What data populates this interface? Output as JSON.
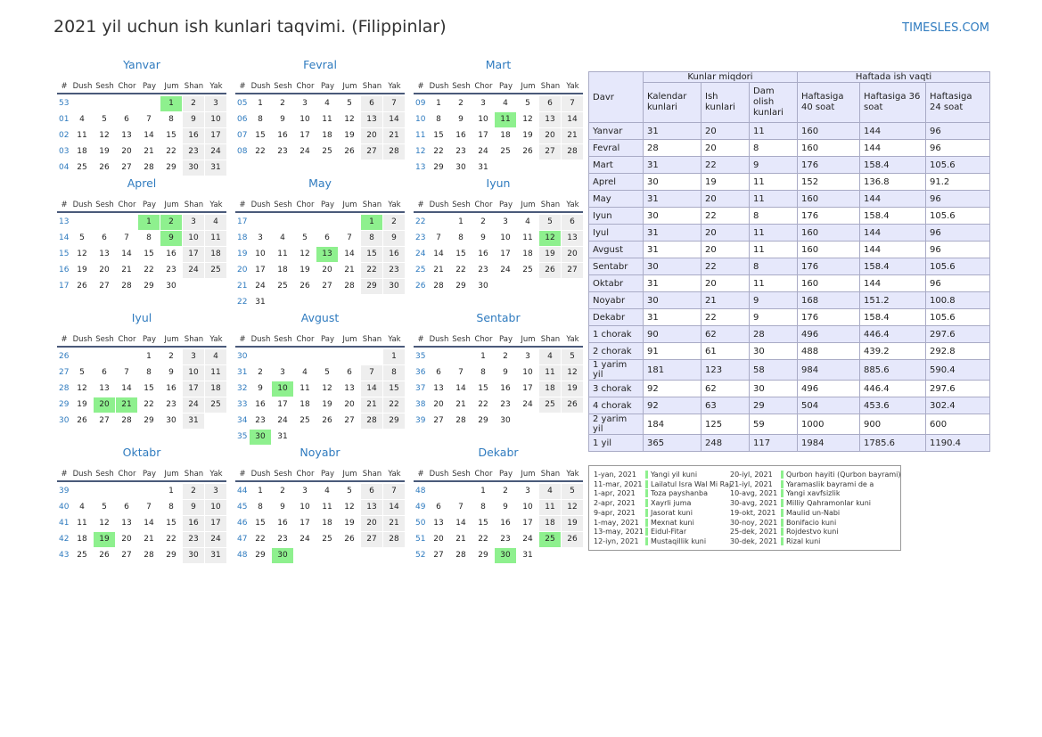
{
  "header": {
    "title": "2021 yil uchun ish kunlari taqvimi. (Filippinlar)",
    "site": "TIMESLES.COM"
  },
  "calendar": {
    "weekdays": [
      "#",
      "Dush",
      "Sesh",
      "Chor",
      "Pay",
      "Jum",
      "Shan",
      "Yak"
    ],
    "months": [
      {
        "name": "Yanvar",
        "holidays": [
          1
        ],
        "weeks": [
          [
            "53",
            null,
            null,
            null,
            null,
            1,
            2,
            3
          ],
          [
            "01",
            4,
            5,
            6,
            7,
            8,
            9,
            10
          ],
          [
            "02",
            11,
            12,
            13,
            14,
            15,
            16,
            17
          ],
          [
            "03",
            18,
            19,
            20,
            21,
            22,
            23,
            24
          ],
          [
            "04",
            25,
            26,
            27,
            28,
            29,
            30,
            31
          ]
        ]
      },
      {
        "name": "Fevral",
        "holidays": [],
        "weeks": [
          [
            "05",
            1,
            2,
            3,
            4,
            5,
            6,
            7
          ],
          [
            "06",
            8,
            9,
            10,
            11,
            12,
            13,
            14
          ],
          [
            "07",
            15,
            16,
            17,
            18,
            19,
            20,
            21
          ],
          [
            "08",
            22,
            23,
            24,
            25,
            26,
            27,
            28
          ]
        ]
      },
      {
        "name": "Mart",
        "holidays": [
          11
        ],
        "weeks": [
          [
            "09",
            1,
            2,
            3,
            4,
            5,
            6,
            7
          ],
          [
            "10",
            8,
            9,
            10,
            11,
            12,
            13,
            14
          ],
          [
            "11",
            15,
            16,
            17,
            18,
            19,
            20,
            21
          ],
          [
            "12",
            22,
            23,
            24,
            25,
            26,
            27,
            28
          ],
          [
            "13",
            29,
            30,
            31,
            null,
            null,
            null,
            null
          ]
        ]
      },
      {
        "name": "Aprel",
        "holidays": [
          1,
          2,
          9
        ],
        "weeks": [
          [
            "13",
            null,
            null,
            null,
            1,
            2,
            3,
            4
          ],
          [
            "14",
            5,
            6,
            7,
            8,
            9,
            10,
            11
          ],
          [
            "15",
            12,
            13,
            14,
            15,
            16,
            17,
            18
          ],
          [
            "16",
            19,
            20,
            21,
            22,
            23,
            24,
            25
          ],
          [
            "17",
            26,
            27,
            28,
            29,
            30,
            null,
            null
          ]
        ]
      },
      {
        "name": "May",
        "holidays": [
          1,
          13
        ],
        "weeks": [
          [
            "17",
            null,
            null,
            null,
            null,
            null,
            1,
            2
          ],
          [
            "18",
            3,
            4,
            5,
            6,
            7,
            8,
            9
          ],
          [
            "19",
            10,
            11,
            12,
            13,
            14,
            15,
            16
          ],
          [
            "20",
            17,
            18,
            19,
            20,
            21,
            22,
            23
          ],
          [
            "21",
            24,
            25,
            26,
            27,
            28,
            29,
            30
          ],
          [
            "22",
            31,
            null,
            null,
            null,
            null,
            null,
            null
          ]
        ]
      },
      {
        "name": "Iyun",
        "holidays": [
          12
        ],
        "weeks": [
          [
            "22",
            null,
            1,
            2,
            3,
            4,
            5,
            6
          ],
          [
            "23",
            7,
            8,
            9,
            10,
            11,
            12,
            13
          ],
          [
            "24",
            14,
            15,
            16,
            17,
            18,
            19,
            20
          ],
          [
            "25",
            21,
            22,
            23,
            24,
            25,
            26,
            27
          ],
          [
            "26",
            28,
            29,
            30,
            null,
            null,
            null,
            null
          ]
        ]
      },
      {
        "name": "Iyul",
        "holidays": [
          20,
          21
        ],
        "weeks": [
          [
            "26",
            null,
            null,
            null,
            1,
            2,
            3,
            4
          ],
          [
            "27",
            5,
            6,
            7,
            8,
            9,
            10,
            11
          ],
          [
            "28",
            12,
            13,
            14,
            15,
            16,
            17,
            18
          ],
          [
            "29",
            19,
            20,
            21,
            22,
            23,
            24,
            25
          ],
          [
            "30",
            26,
            27,
            28,
            29,
            30,
            31,
            null
          ]
        ]
      },
      {
        "name": "Avgust",
        "holidays": [
          10,
          30
        ],
        "weeks": [
          [
            "30",
            null,
            null,
            null,
            null,
            null,
            null,
            1
          ],
          [
            "31",
            2,
            3,
            4,
            5,
            6,
            7,
            8
          ],
          [
            "32",
            9,
            10,
            11,
            12,
            13,
            14,
            15
          ],
          [
            "33",
            16,
            17,
            18,
            19,
            20,
            21,
            22
          ],
          [
            "34",
            23,
            24,
            25,
            26,
            27,
            28,
            29
          ],
          [
            "35",
            30,
            31,
            null,
            null,
            null,
            null,
            null
          ]
        ]
      },
      {
        "name": "Sentabr",
        "holidays": [],
        "weeks": [
          [
            "35",
            null,
            null,
            1,
            2,
            3,
            4,
            5
          ],
          [
            "36",
            6,
            7,
            8,
            9,
            10,
            11,
            12
          ],
          [
            "37",
            13,
            14,
            15,
            16,
            17,
            18,
            19
          ],
          [
            "38",
            20,
            21,
            22,
            23,
            24,
            25,
            26
          ],
          [
            "39",
            27,
            28,
            29,
            30,
            null,
            null,
            null
          ]
        ]
      },
      {
        "name": "Oktabr",
        "holidays": [
          19
        ],
        "weeks": [
          [
            "39",
            null,
            null,
            null,
            null,
            1,
            2,
            3
          ],
          [
            "40",
            4,
            5,
            6,
            7,
            8,
            9,
            10
          ],
          [
            "41",
            11,
            12,
            13,
            14,
            15,
            16,
            17
          ],
          [
            "42",
            18,
            19,
            20,
            21,
            22,
            23,
            24
          ],
          [
            "43",
            25,
            26,
            27,
            28,
            29,
            30,
            31
          ]
        ]
      },
      {
        "name": "Noyabr",
        "holidays": [
          30
        ],
        "weeks": [
          [
            "44",
            1,
            2,
            3,
            4,
            5,
            6,
            7
          ],
          [
            "45",
            8,
            9,
            10,
            11,
            12,
            13,
            14
          ],
          [
            "46",
            15,
            16,
            17,
            18,
            19,
            20,
            21
          ],
          [
            "47",
            22,
            23,
            24,
            25,
            26,
            27,
            28
          ],
          [
            "48",
            29,
            30,
            null,
            null,
            null,
            null,
            null
          ]
        ]
      },
      {
        "name": "Dekabr",
        "holidays": [
          25,
          30
        ],
        "weeks": [
          [
            "48",
            null,
            null,
            1,
            2,
            3,
            4,
            5
          ],
          [
            "49",
            6,
            7,
            8,
            9,
            10,
            11,
            12
          ],
          [
            "50",
            13,
            14,
            15,
            16,
            17,
            18,
            19
          ],
          [
            "51",
            20,
            21,
            22,
            23,
            24,
            25,
            26
          ],
          [
            "52",
            27,
            28,
            29,
            30,
            31,
            null,
            null
          ]
        ]
      }
    ]
  },
  "table": {
    "period_header": "Davr",
    "group_days": "Kunlar miqdori",
    "group_hours": "Haftada ish vaqti",
    "columns": [
      "Kalendar kunlari",
      "Ish kunlari",
      "Dam olish kunlari",
      "Haftasiga 40 soat",
      "Haftasiga 36 soat",
      "Haftasiga 24 soat"
    ],
    "rows": [
      [
        "Yanvar",
        31,
        20,
        11,
        160,
        144,
        96
      ],
      [
        "Fevral",
        28,
        20,
        8,
        160,
        144,
        96
      ],
      [
        "Mart",
        31,
        22,
        9,
        176,
        158.4,
        105.6
      ],
      [
        "Aprel",
        30,
        19,
        11,
        152,
        136.8,
        91.2
      ],
      [
        "May",
        31,
        20,
        11,
        160,
        144,
        96
      ],
      [
        "Iyun",
        30,
        22,
        8,
        176,
        158.4,
        105.6
      ],
      [
        "Iyul",
        31,
        20,
        11,
        160,
        144,
        96
      ],
      [
        "Avgust",
        31,
        20,
        11,
        160,
        144,
        96
      ],
      [
        "Sentabr",
        30,
        22,
        8,
        176,
        158.4,
        105.6
      ],
      [
        "Oktabr",
        31,
        20,
        11,
        160,
        144,
        96
      ],
      [
        "Noyabr",
        30,
        21,
        9,
        168,
        151.2,
        100.8
      ],
      [
        "Dekabr",
        31,
        22,
        9,
        176,
        158.4,
        105.6
      ],
      [
        "1 chorak",
        90,
        62,
        28,
        496,
        446.4,
        297.6
      ],
      [
        "2 chorak",
        91,
        61,
        30,
        488,
        439.2,
        292.8
      ],
      [
        "1 yarim yil",
        181,
        123,
        58,
        984,
        885.6,
        590.4
      ],
      [
        "3 chorak",
        92,
        62,
        30,
        496,
        446.4,
        297.6
      ],
      [
        "4 chorak",
        92,
        63,
        29,
        504,
        453.6,
        302.4
      ],
      [
        "2 yarim yil",
        184,
        125,
        59,
        1000,
        900,
        600
      ],
      [
        "1 yil",
        365,
        248,
        117,
        1984,
        1785.6,
        1190.4
      ]
    ]
  },
  "holidays": [
    {
      "date": "1-yan, 2021",
      "name": "Yangi yil kuni"
    },
    {
      "date": "11-mar, 2021",
      "name": "Lailatul Isra Wal Mi Raj"
    },
    {
      "date": "1-apr, 2021",
      "name": "Toza payshanba"
    },
    {
      "date": "2-apr, 2021",
      "name": "Xayrli juma"
    },
    {
      "date": "9-apr, 2021",
      "name": "Jasorat kuni"
    },
    {
      "date": "1-may, 2021",
      "name": "Mexnat kuni"
    },
    {
      "date": "13-may, 2021",
      "name": "Eidul-Fitar"
    },
    {
      "date": "12-iyn, 2021",
      "name": "Mustaqillik kuni"
    },
    {
      "date": "20-iyl, 2021",
      "name": "Qurbon hayiti (Qurbon bayrami)"
    },
    {
      "date": "21-iyl, 2021",
      "name": "Yaramaslik bayrami de a"
    },
    {
      "date": "10-avg, 2021",
      "name": "Yangi xavfsizlik"
    },
    {
      "date": "30-avg, 2021",
      "name": "Milliy Qahramonlar kuni"
    },
    {
      "date": "19-okt, 2021",
      "name": "Maulid un-Nabi"
    },
    {
      "date": "30-noy, 2021",
      "name": "Bonifacio kuni"
    },
    {
      "date": "25-dek, 2021",
      "name": "Rojdestvo kuni"
    },
    {
      "date": "30-dek, 2021",
      "name": "Rizal kuni"
    }
  ]
}
